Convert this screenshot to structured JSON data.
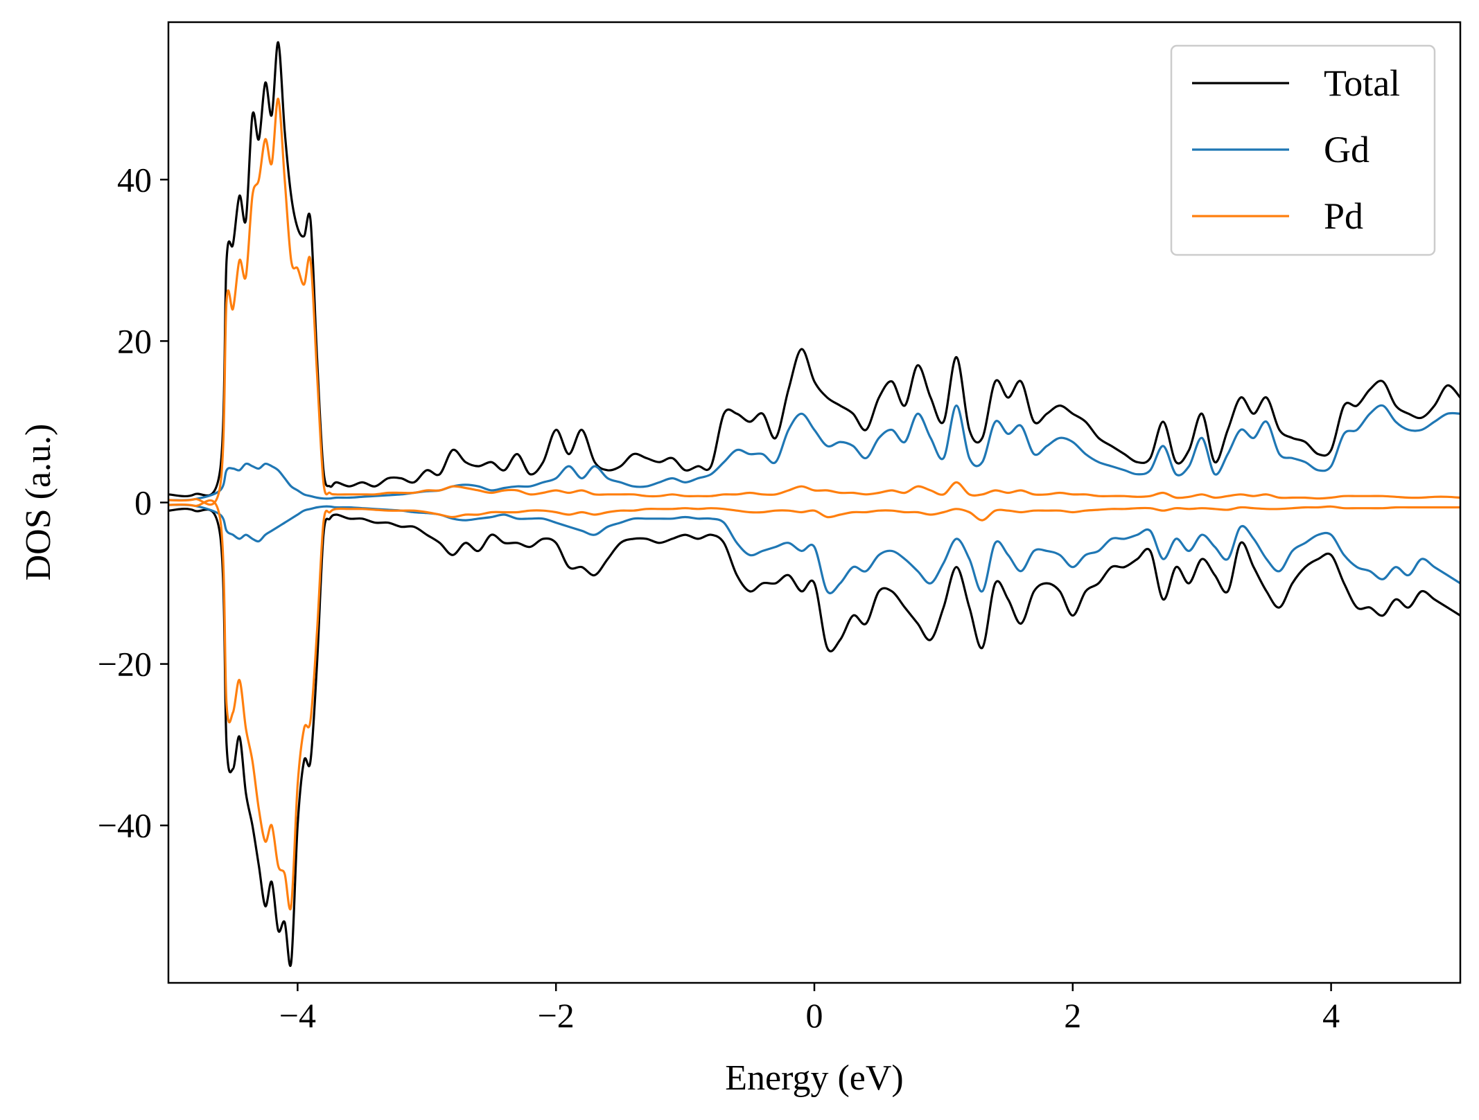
{
  "chart_data": {
    "type": "line",
    "title": "",
    "xlabel": "Energy (eV)",
    "ylabel": "DOS (a.u.)",
    "xlim": [
      -5,
      5
    ],
    "ylim": [
      -59.5,
      59.5
    ],
    "xticks": [
      -4,
      -2,
      0,
      2,
      4
    ],
    "xtick_labels": [
      "−4",
      "−2",
      "0",
      "2",
      "4"
    ],
    "yticks": [
      -40,
      -20,
      0,
      20,
      40
    ],
    "ytick_labels": [
      "−40",
      "−20",
      "0",
      "20",
      "40"
    ],
    "grid": false,
    "legend_position": "top-right",
    "x": [
      -5.0,
      -4.8,
      -4.6,
      -4.55,
      -4.5,
      -4.45,
      -4.4,
      -4.35,
      -4.3,
      -4.25,
      -4.2,
      -4.15,
      -4.1,
      -4.05,
      -4.0,
      -3.95,
      -3.9,
      -3.85,
      -3.8,
      -3.75,
      -3.7,
      -3.6,
      -3.5,
      -3.4,
      -3.3,
      -3.2,
      -3.1,
      -3.0,
      -2.9,
      -2.8,
      -2.7,
      -2.6,
      -2.5,
      -2.4,
      -2.3,
      -2.2,
      -2.1,
      -2.0,
      -1.9,
      -1.8,
      -1.7,
      -1.6,
      -1.5,
      -1.4,
      -1.3,
      -1.2,
      -1.1,
      -1.0,
      -0.9,
      -0.8,
      -0.7,
      -0.6,
      -0.5,
      -0.4,
      -0.3,
      -0.2,
      -0.1,
      0.0,
      0.1,
      0.2,
      0.3,
      0.4,
      0.5,
      0.6,
      0.7,
      0.8,
      0.9,
      1.0,
      1.1,
      1.2,
      1.3,
      1.4,
      1.5,
      1.6,
      1.7,
      1.8,
      1.9,
      2.0,
      2.1,
      2.2,
      2.3,
      2.4,
      2.5,
      2.6,
      2.7,
      2.8,
      2.9,
      3.0,
      3.1,
      3.2,
      3.3,
      3.4,
      3.5,
      3.6,
      3.7,
      3.8,
      3.9,
      4.0,
      4.1,
      4.2,
      4.3,
      4.4,
      4.5,
      4.6,
      4.7,
      4.8,
      4.9,
      5.0
    ],
    "series": [
      {
        "name": "Total",
        "color": "#000000",
        "values_up": [
          1.0,
          1.0,
          4.0,
          30.0,
          32.0,
          38.0,
          35.0,
          48.0,
          45.0,
          52.0,
          48.0,
          57.0,
          46.0,
          38.0,
          34.0,
          33.0,
          35.0,
          18.0,
          4.0,
          2.0,
          2.5,
          2.0,
          2.5,
          2.0,
          3.0,
          3.0,
          2.5,
          4.0,
          3.5,
          6.5,
          5.0,
          4.5,
          5.0,
          4.0,
          6.0,
          3.5,
          5.0,
          9.0,
          6.0,
          9.0,
          5.0,
          4.0,
          4.5,
          6.0,
          5.5,
          5.0,
          5.5,
          4.0,
          4.5,
          4.5,
          11.0,
          11.0,
          10.0,
          11.0,
          8.0,
          14.0,
          19.0,
          15.0,
          13.0,
          12.0,
          11.0,
          9.0,
          13.0,
          15.0,
          12.0,
          17.0,
          13.0,
          10.0,
          18.0,
          9.0,
          8.0,
          15.0,
          13.0,
          15.0,
          10.0,
          11.0,
          12.0,
          11.0,
          10.0,
          8.0,
          7.0,
          6.0,
          5.0,
          5.5,
          10.0,
          5.0,
          6.5,
          11.0,
          5.0,
          9.0,
          13.0,
          11.0,
          13.0,
          9.0,
          8.0,
          7.5,
          6.0,
          6.5,
          12.0,
          12.0,
          14.0,
          15.0,
          12.0,
          11.0,
          10.5,
          12.0,
          14.5,
          13.0
        ],
        "values_down": [
          -1.0,
          -1.0,
          -4.0,
          -30.0,
          -33.0,
          -29.0,
          -36.0,
          -40.0,
          -45.0,
          -50.0,
          -47.0,
          -53.0,
          -52.0,
          -57.0,
          -40.0,
          -32.0,
          -32.0,
          -20.0,
          -4.0,
          -2.0,
          -1.5,
          -2.0,
          -2.0,
          -2.5,
          -2.5,
          -3.0,
          -3.0,
          -4.0,
          -5.0,
          -6.5,
          -5.0,
          -6.0,
          -4.0,
          -5.0,
          -5.0,
          -5.5,
          -4.5,
          -5.0,
          -8.0,
          -8.0,
          -9.0,
          -7.0,
          -5.0,
          -4.5,
          -4.5,
          -5.0,
          -4.5,
          -4.0,
          -4.5,
          -4.0,
          -5.0,
          -9.0,
          -11.0,
          -10.0,
          -10.0,
          -9.0,
          -11.0,
          -10.0,
          -18.0,
          -17.0,
          -14.0,
          -15.0,
          -11.0,
          -11.0,
          -13.0,
          -15.0,
          -17.0,
          -13.0,
          -8.0,
          -13.0,
          -18.0,
          -10.0,
          -12.0,
          -15.0,
          -11.0,
          -10.0,
          -11.0,
          -14.0,
          -11.0,
          -10.0,
          -8.0,
          -8.0,
          -7.0,
          -6.0,
          -12.0,
          -8.0,
          -10.0,
          -7.0,
          -9.0,
          -11.0,
          -5.0,
          -8.0,
          -11.0,
          -13.0,
          -10.0,
          -8.0,
          -7.0,
          -6.5,
          -10.0,
          -13.0,
          -13.0,
          -14.0,
          -12.0,
          -13.0,
          -11.0,
          -12.0,
          -13.0,
          -14.0
        ]
      },
      {
        "name": "Gd",
        "color": "#1f77b4",
        "values_up": [
          0.3,
          0.4,
          1.5,
          4.0,
          4.2,
          4.0,
          4.8,
          4.5,
          4.2,
          4.8,
          4.5,
          4.0,
          3.0,
          2.0,
          1.5,
          1.0,
          0.8,
          0.6,
          0.5,
          0.5,
          0.6,
          0.6,
          0.7,
          0.8,
          0.9,
          1.0,
          1.2,
          1.4,
          1.5,
          2.0,
          2.2,
          2.0,
          1.5,
          1.8,
          2.0,
          2.0,
          2.5,
          3.0,
          4.5,
          3.0,
          4.5,
          3.0,
          2.5,
          2.0,
          2.0,
          2.5,
          3.0,
          2.5,
          3.0,
          3.5,
          5.0,
          6.5,
          6.0,
          6.0,
          5.0,
          9.0,
          11.0,
          9.0,
          7.0,
          7.5,
          7.0,
          5.5,
          8.0,
          9.0,
          7.5,
          11.0,
          8.0,
          5.5,
          12.0,
          5.5,
          5.0,
          10.0,
          8.5,
          9.5,
          6.0,
          7.0,
          8.0,
          7.5,
          6.0,
          5.0,
          4.5,
          4.0,
          3.5,
          4.0,
          7.0,
          3.5,
          4.5,
          8.0,
          3.5,
          6.0,
          9.0,
          8.0,
          10.0,
          6.0,
          5.5,
          5.0,
          4.0,
          4.5,
          8.5,
          9.0,
          11.0,
          12.0,
          10.0,
          9.0,
          9.0,
          10.0,
          11.0,
          11.0
        ],
        "values_down": [
          -0.3,
          -0.4,
          -1.5,
          -3.5,
          -4.0,
          -4.5,
          -4.0,
          -4.5,
          -4.8,
          -4.0,
          -3.5,
          -3.0,
          -2.5,
          -2.0,
          -1.5,
          -1.0,
          -0.8,
          -0.6,
          -0.5,
          -0.5,
          -0.6,
          -0.6,
          -0.7,
          -0.8,
          -0.9,
          -1.0,
          -1.2,
          -1.3,
          -1.5,
          -2.0,
          -2.2,
          -2.0,
          -1.8,
          -1.5,
          -2.0,
          -2.0,
          -2.0,
          -2.5,
          -3.0,
          -3.5,
          -4.0,
          -3.0,
          -2.5,
          -2.0,
          -2.0,
          -2.0,
          -2.0,
          -1.8,
          -2.0,
          -2.0,
          -2.5,
          -5.0,
          -6.5,
          -6.0,
          -5.5,
          -5.0,
          -6.0,
          -5.5,
          -11.0,
          -10.0,
          -8.0,
          -8.5,
          -6.5,
          -6.0,
          -7.0,
          -8.5,
          -10.0,
          -7.5,
          -4.5,
          -7.0,
          -11.0,
          -5.0,
          -6.5,
          -8.5,
          -6.0,
          -6.0,
          -6.5,
          -8.0,
          -6.5,
          -6.0,
          -4.5,
          -4.5,
          -4.0,
          -3.5,
          -7.0,
          -4.5,
          -6.0,
          -4.0,
          -5.5,
          -7.0,
          -3.0,
          -4.5,
          -7.0,
          -8.5,
          -6.0,
          -5.0,
          -4.0,
          -4.0,
          -6.5,
          -8.0,
          -8.5,
          -9.5,
          -8.0,
          -9.0,
          -7.0,
          -8.0,
          -9.0,
          -10.0
        ]
      },
      {
        "name": "Pd",
        "color": "#ff7f0e",
        "values_up": [
          0.3,
          0.4,
          2.0,
          25.0,
          24.0,
          30.0,
          28.0,
          38.0,
          40.0,
          45.0,
          42.0,
          50.0,
          40.0,
          30.0,
          29.0,
          27.0,
          30.0,
          16.0,
          2.5,
          1.2,
          1.0,
          1.0,
          1.0,
          1.0,
          1.2,
          1.2,
          1.2,
          1.5,
          1.5,
          2.0,
          1.8,
          1.5,
          1.2,
          1.5,
          1.5,
          1.0,
          1.2,
          1.5,
          1.2,
          1.5,
          1.0,
          1.0,
          1.0,
          1.0,
          0.8,
          0.8,
          1.0,
          0.8,
          0.8,
          0.8,
          1.0,
          1.0,
          1.2,
          1.0,
          1.0,
          1.5,
          2.0,
          1.5,
          1.5,
          1.2,
          1.2,
          1.0,
          1.2,
          1.5,
          1.2,
          2.0,
          1.5,
          1.0,
          2.5,
          1.0,
          1.0,
          1.5,
          1.2,
          1.5,
          1.0,
          1.0,
          1.2,
          1.0,
          1.0,
          0.8,
          0.8,
          0.8,
          0.7,
          0.8,
          1.2,
          0.6,
          0.7,
          1.0,
          0.6,
          0.8,
          1.0,
          0.8,
          1.0,
          0.6,
          0.6,
          0.6,
          0.5,
          0.6,
          0.8,
          0.8,
          0.8,
          0.8,
          0.7,
          0.6,
          0.6,
          0.7,
          0.7,
          0.6
        ],
        "values_down": [
          -0.3,
          -0.4,
          -2.0,
          -25.0,
          -26.0,
          -22.0,
          -28.0,
          -32.0,
          -38.0,
          -42.0,
          -40.0,
          -45.0,
          -46.0,
          -50.0,
          -35.0,
          -28.0,
          -27.0,
          -16.0,
          -2.5,
          -1.2,
          -0.8,
          -0.8,
          -0.8,
          -0.9,
          -1.0,
          -1.0,
          -1.0,
          -1.2,
          -1.5,
          -1.8,
          -1.5,
          -1.5,
          -1.2,
          -1.2,
          -1.2,
          -1.0,
          -1.0,
          -1.2,
          -1.5,
          -1.2,
          -1.5,
          -1.2,
          -1.0,
          -1.0,
          -0.8,
          -0.8,
          -0.8,
          -0.7,
          -0.8,
          -0.7,
          -0.8,
          -1.0,
          -1.2,
          -1.2,
          -1.0,
          -1.0,
          -1.2,
          -1.0,
          -1.8,
          -1.5,
          -1.2,
          -1.2,
          -1.0,
          -1.0,
          -1.2,
          -1.2,
          -1.5,
          -1.2,
          -0.8,
          -1.2,
          -2.2,
          -1.0,
          -1.0,
          -1.2,
          -1.0,
          -1.0,
          -1.0,
          -1.2,
          -1.0,
          -0.9,
          -0.8,
          -0.8,
          -0.7,
          -0.7,
          -1.0,
          -0.7,
          -0.8,
          -0.7,
          -0.8,
          -0.9,
          -0.6,
          -0.7,
          -0.8,
          -0.8,
          -0.7,
          -0.6,
          -0.6,
          -0.5,
          -0.7,
          -0.7,
          -0.7,
          -0.7,
          -0.6,
          -0.6,
          -0.6,
          -0.6,
          -0.6,
          -0.6
        ]
      }
    ]
  }
}
